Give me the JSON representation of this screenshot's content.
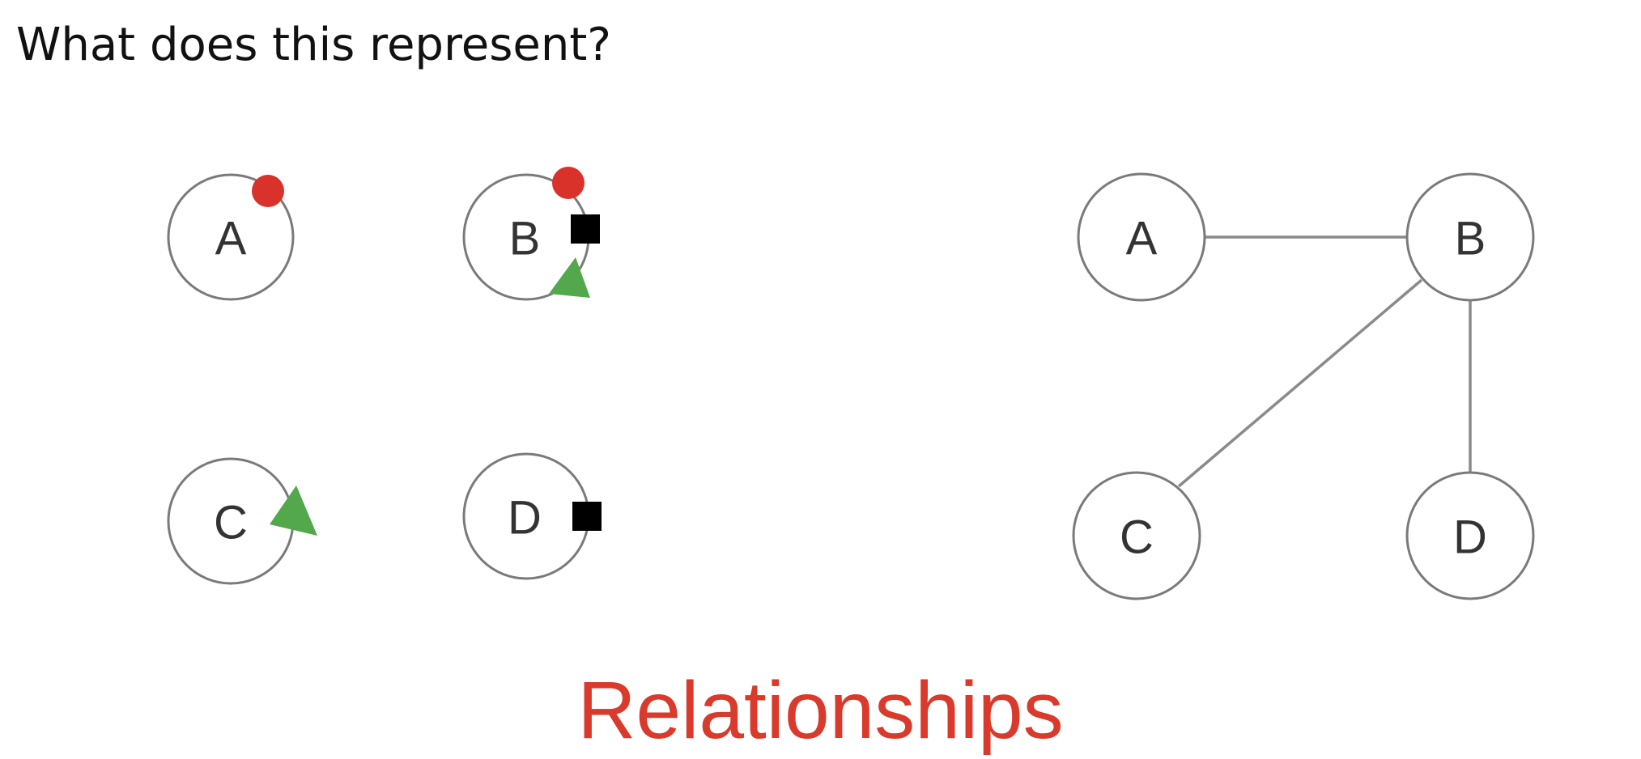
{
  "question": "What does this represent?",
  "answer": "Relationships",
  "colors": {
    "red_dot": "#d9322b",
    "green_triangle": "#52a84a",
    "black_square": "#000000",
    "answer_text": "#d93a2b"
  },
  "left_panel": {
    "nodes": [
      {
        "label": "A",
        "markers": [
          "red-dot"
        ]
      },
      {
        "label": "B",
        "markers": [
          "red-dot",
          "black-square",
          "green-triangle"
        ]
      },
      {
        "label": "C",
        "markers": [
          "green-triangle"
        ]
      },
      {
        "label": "D",
        "markers": [
          "black-square"
        ]
      }
    ]
  },
  "right_panel": {
    "nodes": [
      {
        "label": "A"
      },
      {
        "label": "B"
      },
      {
        "label": "C"
      },
      {
        "label": "D"
      }
    ],
    "edges": [
      {
        "from": "A",
        "to": "B"
      },
      {
        "from": "B",
        "to": "C"
      },
      {
        "from": "B",
        "to": "D"
      }
    ]
  }
}
